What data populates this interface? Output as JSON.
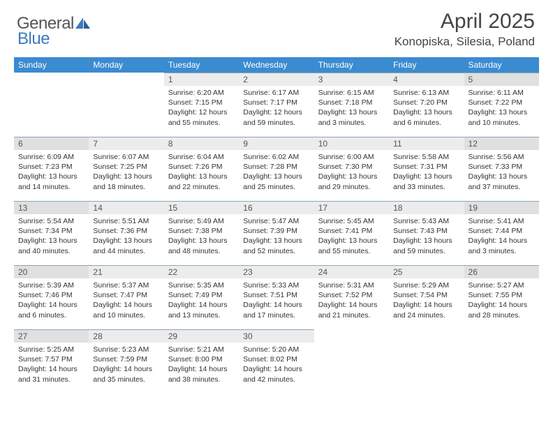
{
  "colors": {
    "header_bg": "#3b8bd0",
    "header_text": "#ffffff",
    "daynum_bg": "#ececec",
    "daynum_weekend_bg": "#e0e0e0",
    "daynum_text": "#555555",
    "body_text": "#333333",
    "divider": "#8aa6bd",
    "title_text": "#444444",
    "logo_gray": "#555555",
    "logo_blue": "#3b7bbf",
    "page_bg": "#ffffff"
  },
  "logo": {
    "text1": "General",
    "text2": "Blue"
  },
  "title": {
    "month": "April 2025",
    "location": "Konopiska, Silesia, Poland"
  },
  "weekdays": [
    "Sunday",
    "Monday",
    "Tuesday",
    "Wednesday",
    "Thursday",
    "Friday",
    "Saturday"
  ],
  "weeks": [
    [
      null,
      null,
      {
        "n": "1",
        "sr": "Sunrise: 6:20 AM",
        "ss": "Sunset: 7:15 PM",
        "d1": "Daylight: 12 hours",
        "d2": "and 55 minutes."
      },
      {
        "n": "2",
        "sr": "Sunrise: 6:17 AM",
        "ss": "Sunset: 7:17 PM",
        "d1": "Daylight: 12 hours",
        "d2": "and 59 minutes."
      },
      {
        "n": "3",
        "sr": "Sunrise: 6:15 AM",
        "ss": "Sunset: 7:18 PM",
        "d1": "Daylight: 13 hours",
        "d2": "and 3 minutes."
      },
      {
        "n": "4",
        "sr": "Sunrise: 6:13 AM",
        "ss": "Sunset: 7:20 PM",
        "d1": "Daylight: 13 hours",
        "d2": "and 6 minutes."
      },
      {
        "n": "5",
        "sr": "Sunrise: 6:11 AM",
        "ss": "Sunset: 7:22 PM",
        "d1": "Daylight: 13 hours",
        "d2": "and 10 minutes."
      }
    ],
    [
      {
        "n": "6",
        "sr": "Sunrise: 6:09 AM",
        "ss": "Sunset: 7:23 PM",
        "d1": "Daylight: 13 hours",
        "d2": "and 14 minutes."
      },
      {
        "n": "7",
        "sr": "Sunrise: 6:07 AM",
        "ss": "Sunset: 7:25 PM",
        "d1": "Daylight: 13 hours",
        "d2": "and 18 minutes."
      },
      {
        "n": "8",
        "sr": "Sunrise: 6:04 AM",
        "ss": "Sunset: 7:26 PM",
        "d1": "Daylight: 13 hours",
        "d2": "and 22 minutes."
      },
      {
        "n": "9",
        "sr": "Sunrise: 6:02 AM",
        "ss": "Sunset: 7:28 PM",
        "d1": "Daylight: 13 hours",
        "d2": "and 25 minutes."
      },
      {
        "n": "10",
        "sr": "Sunrise: 6:00 AM",
        "ss": "Sunset: 7:30 PM",
        "d1": "Daylight: 13 hours",
        "d2": "and 29 minutes."
      },
      {
        "n": "11",
        "sr": "Sunrise: 5:58 AM",
        "ss": "Sunset: 7:31 PM",
        "d1": "Daylight: 13 hours",
        "d2": "and 33 minutes."
      },
      {
        "n": "12",
        "sr": "Sunrise: 5:56 AM",
        "ss": "Sunset: 7:33 PM",
        "d1": "Daylight: 13 hours",
        "d2": "and 37 minutes."
      }
    ],
    [
      {
        "n": "13",
        "sr": "Sunrise: 5:54 AM",
        "ss": "Sunset: 7:34 PM",
        "d1": "Daylight: 13 hours",
        "d2": "and 40 minutes."
      },
      {
        "n": "14",
        "sr": "Sunrise: 5:51 AM",
        "ss": "Sunset: 7:36 PM",
        "d1": "Daylight: 13 hours",
        "d2": "and 44 minutes."
      },
      {
        "n": "15",
        "sr": "Sunrise: 5:49 AM",
        "ss": "Sunset: 7:38 PM",
        "d1": "Daylight: 13 hours",
        "d2": "and 48 minutes."
      },
      {
        "n": "16",
        "sr": "Sunrise: 5:47 AM",
        "ss": "Sunset: 7:39 PM",
        "d1": "Daylight: 13 hours",
        "d2": "and 52 minutes."
      },
      {
        "n": "17",
        "sr": "Sunrise: 5:45 AM",
        "ss": "Sunset: 7:41 PM",
        "d1": "Daylight: 13 hours",
        "d2": "and 55 minutes."
      },
      {
        "n": "18",
        "sr": "Sunrise: 5:43 AM",
        "ss": "Sunset: 7:43 PM",
        "d1": "Daylight: 13 hours",
        "d2": "and 59 minutes."
      },
      {
        "n": "19",
        "sr": "Sunrise: 5:41 AM",
        "ss": "Sunset: 7:44 PM",
        "d1": "Daylight: 14 hours",
        "d2": "and 3 minutes."
      }
    ],
    [
      {
        "n": "20",
        "sr": "Sunrise: 5:39 AM",
        "ss": "Sunset: 7:46 PM",
        "d1": "Daylight: 14 hours",
        "d2": "and 6 minutes."
      },
      {
        "n": "21",
        "sr": "Sunrise: 5:37 AM",
        "ss": "Sunset: 7:47 PM",
        "d1": "Daylight: 14 hours",
        "d2": "and 10 minutes."
      },
      {
        "n": "22",
        "sr": "Sunrise: 5:35 AM",
        "ss": "Sunset: 7:49 PM",
        "d1": "Daylight: 14 hours",
        "d2": "and 13 minutes."
      },
      {
        "n": "23",
        "sr": "Sunrise: 5:33 AM",
        "ss": "Sunset: 7:51 PM",
        "d1": "Daylight: 14 hours",
        "d2": "and 17 minutes."
      },
      {
        "n": "24",
        "sr": "Sunrise: 5:31 AM",
        "ss": "Sunset: 7:52 PM",
        "d1": "Daylight: 14 hours",
        "d2": "and 21 minutes."
      },
      {
        "n": "25",
        "sr": "Sunrise: 5:29 AM",
        "ss": "Sunset: 7:54 PM",
        "d1": "Daylight: 14 hours",
        "d2": "and 24 minutes."
      },
      {
        "n": "26",
        "sr": "Sunrise: 5:27 AM",
        "ss": "Sunset: 7:55 PM",
        "d1": "Daylight: 14 hours",
        "d2": "and 28 minutes."
      }
    ],
    [
      {
        "n": "27",
        "sr": "Sunrise: 5:25 AM",
        "ss": "Sunset: 7:57 PM",
        "d1": "Daylight: 14 hours",
        "d2": "and 31 minutes."
      },
      {
        "n": "28",
        "sr": "Sunrise: 5:23 AM",
        "ss": "Sunset: 7:59 PM",
        "d1": "Daylight: 14 hours",
        "d2": "and 35 minutes."
      },
      {
        "n": "29",
        "sr": "Sunrise: 5:21 AM",
        "ss": "Sunset: 8:00 PM",
        "d1": "Daylight: 14 hours",
        "d2": "and 38 minutes."
      },
      {
        "n": "30",
        "sr": "Sunrise: 5:20 AM",
        "ss": "Sunset: 8:02 PM",
        "d1": "Daylight: 14 hours",
        "d2": "and 42 minutes."
      },
      null,
      null,
      null
    ]
  ]
}
